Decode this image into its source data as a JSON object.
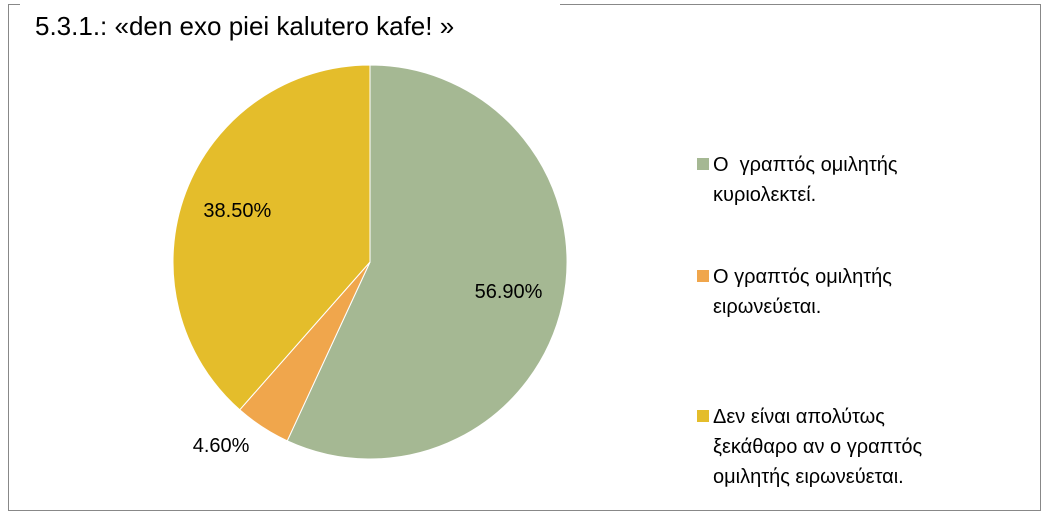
{
  "chart_data": {
    "type": "pie",
    "title": "5.3.1.: «den exo piei kalutero kafe! »",
    "categories": [
      "Ο  γραπτός ομιλητής κυριολεκτεί.",
      "Ο γραπτός ομιλητής ειρωνεύεται.",
      "Δεν είναι απολύτως ξεκάθαρο αν ο γραπτός ομιλητής ειρωνεύεται."
    ],
    "values": [
      56.9,
      4.6,
      38.5
    ],
    "value_labels": [
      "56.90%",
      "4.60%",
      "38.50%"
    ],
    "colors": [
      "#a5b893",
      "#f0a64c",
      "#e4bd2b"
    ],
    "legend": "right"
  }
}
